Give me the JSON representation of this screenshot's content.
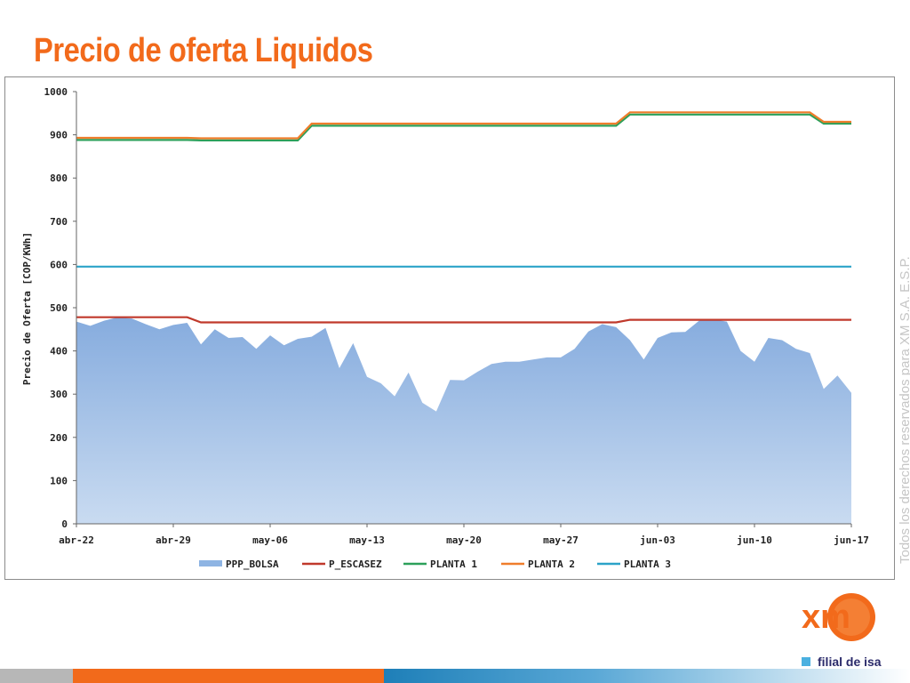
{
  "title": "Precio de oferta Liquidos",
  "watermark": "Todos los derechos reservados para XM S.A. E.S.P.",
  "logo": {
    "text": "xm",
    "icon": "xm-logo-icon",
    "color": "#f26a1b"
  },
  "tagline": "filial de isa",
  "chart_data": {
    "type": "area",
    "ylabel": "Precio de Oferta [COP/KWh]",
    "xlabel": "",
    "ylim": [
      0,
      1000
    ],
    "y_ticks": [
      0,
      100,
      200,
      300,
      400,
      500,
      600,
      700,
      800,
      900,
      1000
    ],
    "x_ticks": [
      "abr-22",
      "abr-29",
      "may-06",
      "may-13",
      "may-20",
      "may-27",
      "jun-03",
      "jun-10",
      "jun-17"
    ],
    "x_tick_index": [
      0,
      7,
      14,
      21,
      28,
      35,
      42,
      49,
      56
    ],
    "x_range": [
      0,
      56
    ],
    "grid": false,
    "legend_position": "bottom",
    "series": [
      {
        "name": "PPP_BOLSA",
        "type": "area",
        "color": "#8eb4e3",
        "values": [
          468,
          458,
          470,
          478,
          475,
          462,
          450,
          460,
          465,
          415,
          450,
          430,
          432,
          405,
          436,
          413,
          428,
          433,
          453,
          360,
          418,
          340,
          325,
          295,
          350,
          280,
          260,
          333,
          332,
          352,
          370,
          375,
          375,
          380,
          385,
          385,
          405,
          445,
          462,
          455,
          425,
          380,
          430,
          443,
          444,
          470,
          473,
          468,
          400,
          375,
          430,
          425,
          405,
          395,
          312,
          343,
          303
        ]
      },
      {
        "name": "P_ESCASEZ",
        "type": "line",
        "color": "#c0392b",
        "values": [
          478,
          478,
          478,
          478,
          478,
          478,
          478,
          478,
          478,
          466,
          466,
          466,
          466,
          466,
          466,
          466,
          466,
          466,
          466,
          466,
          466,
          466,
          466,
          466,
          466,
          466,
          466,
          466,
          466,
          466,
          466,
          466,
          466,
          466,
          466,
          466,
          466,
          466,
          466,
          466,
          472,
          472,
          472,
          472,
          472,
          472,
          472,
          472,
          472,
          472,
          472,
          472,
          472,
          472,
          472,
          472,
          472
        ]
      },
      {
        "name": "PLANTA 1",
        "type": "line",
        "color": "#2ca05a",
        "values": [
          888,
          888,
          888,
          888,
          888,
          888,
          888,
          888,
          888,
          887,
          887,
          887,
          887,
          887,
          887,
          887,
          887,
          921,
          921,
          921,
          921,
          921,
          921,
          921,
          921,
          921,
          921,
          921,
          921,
          921,
          921,
          921,
          921,
          921,
          921,
          921,
          921,
          921,
          921,
          921,
          947,
          947,
          947,
          947,
          947,
          947,
          947,
          947,
          947,
          947,
          947,
          947,
          947,
          947,
          926,
          926,
          926
        ]
      },
      {
        "name": "PLANTA 2",
        "type": "line",
        "color": "#ef7d2b",
        "values": [
          893,
          893,
          893,
          893,
          893,
          893,
          893,
          893,
          893,
          892,
          892,
          892,
          892,
          892,
          892,
          892,
          892,
          926,
          926,
          926,
          926,
          926,
          926,
          926,
          926,
          926,
          926,
          926,
          926,
          926,
          926,
          926,
          926,
          926,
          926,
          926,
          926,
          926,
          926,
          926,
          952,
          952,
          952,
          952,
          952,
          952,
          952,
          952,
          952,
          952,
          952,
          952,
          952,
          952,
          930,
          930,
          930
        ]
      },
      {
        "name": "PLANTA 3",
        "type": "line",
        "color": "#2ba3c8",
        "values": [
          595,
          595,
          595,
          595,
          595,
          595,
          595,
          595,
          595,
          595,
          595,
          595,
          595,
          595,
          595,
          595,
          595,
          595,
          595,
          595,
          595,
          595,
          595,
          595,
          595,
          595,
          595,
          595,
          595,
          595,
          595,
          595,
          595,
          595,
          595,
          595,
          595,
          595,
          595,
          595,
          595,
          595,
          595,
          595,
          595,
          595,
          595,
          595,
          595,
          595,
          595,
          595,
          595,
          595,
          595,
          595,
          595
        ]
      }
    ]
  }
}
